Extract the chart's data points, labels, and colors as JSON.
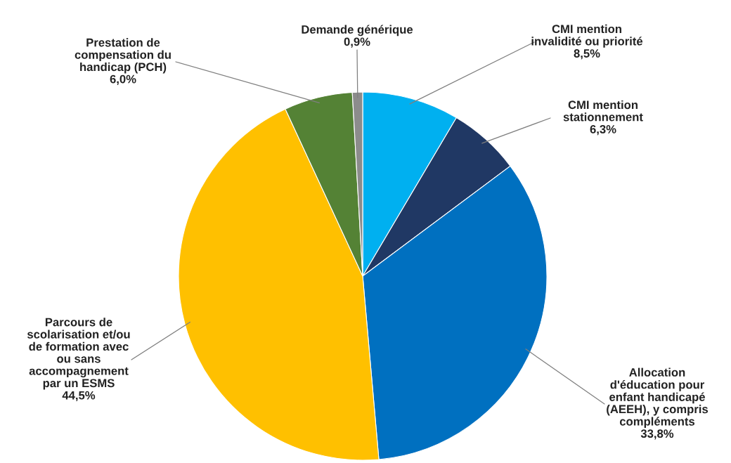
{
  "chart_data": {
    "type": "pie",
    "categories": [
      "CMI mention\ninvalidité ou priorité",
      "CMI mention\nstationnement",
      "Allocation\nd'éducation pour\nenfant handicapé\n(AEEH), y compris\ncompléments",
      "Parcours de\nscolarisation et/ou\nde formation avec\nou sans\naccompagnement\npar un ESMS",
      "Prestation de\ncompensation du\nhandicap (PCH)",
      "Demande générique"
    ],
    "values": [
      8.5,
      6.3,
      33.8,
      44.5,
      6.0,
      0.9
    ],
    "value_labels": [
      "8,5%",
      "6,3%",
      "33,8%",
      "44,5%",
      "6,0%",
      "0,9%"
    ],
    "colors": [
      "#00b0f0",
      "#203864",
      "#0070c0",
      "#ffc000",
      "#548235",
      "#8c8c8c"
    ]
  }
}
